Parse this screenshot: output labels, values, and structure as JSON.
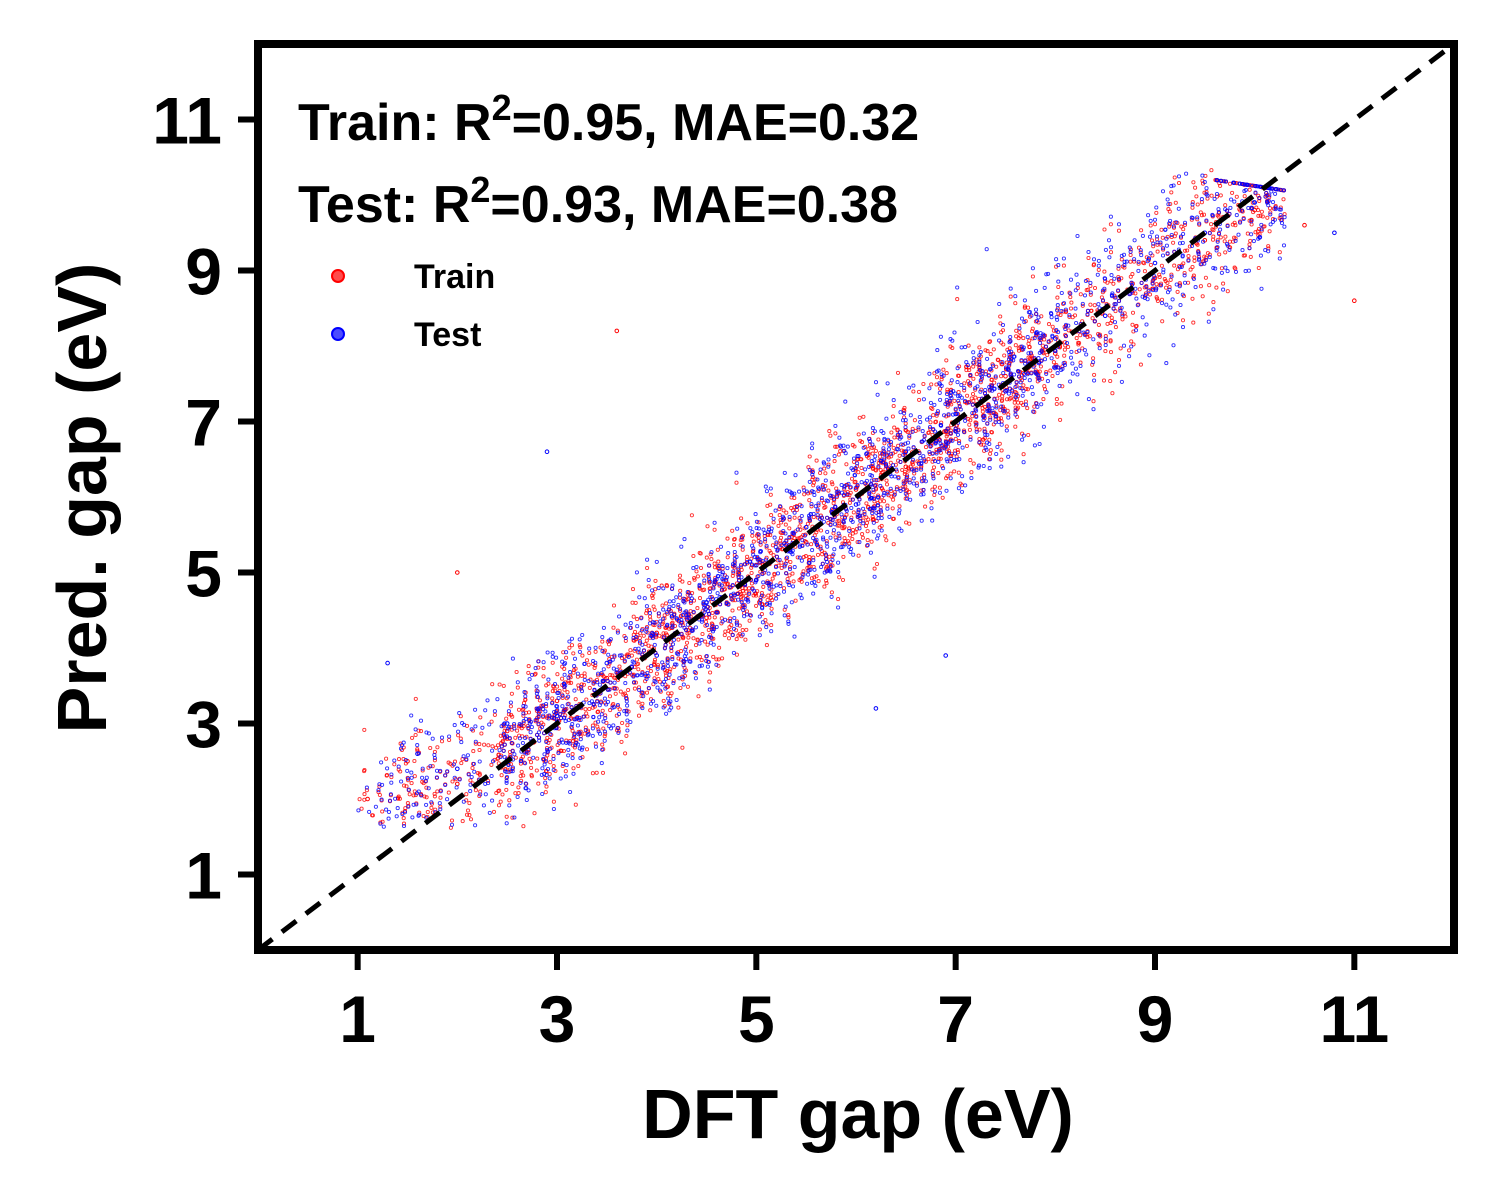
{
  "chart_data": {
    "type": "scatter",
    "xlabel": "DFT gap (eV)",
    "ylabel": "Pred. gap (eV)",
    "xlim": [
      0,
      12
    ],
    "ylim": [
      0,
      12
    ],
    "xticks": [
      1,
      3,
      5,
      7,
      9,
      11
    ],
    "yticks": [
      1,
      3,
      5,
      7,
      9,
      11
    ],
    "grid": false,
    "legend_position": "upper-left",
    "reference_line": {
      "style": "dashed",
      "color": "#000000",
      "from": [
        0,
        0
      ],
      "to": [
        12,
        12
      ]
    },
    "annotations": [
      {
        "prefix": "Train: R",
        "sup": "2",
        "suffix": "=0.95, MAE=0.32"
      },
      {
        "prefix": "Test: R",
        "sup": "2",
        "suffix": "=0.93, MAE=0.38"
      }
    ],
    "series": [
      {
        "name": "Train",
        "color": "#ff0000",
        "marker": "hollow-circle",
        "x_range": [
          1.0,
          11.0
        ],
        "density": "high",
        "r2": 0.95,
        "mae": 0.32,
        "sample_points": [
          {
            "x": 1.1,
            "y": 2.0
          },
          {
            "x": 1.5,
            "y": 2.5
          },
          {
            "x": 2.0,
            "y": 2.2
          },
          {
            "x": 2.5,
            "y": 2.9
          },
          {
            "x": 3.0,
            "y": 3.3
          },
          {
            "x": 3.5,
            "y": 3.6
          },
          {
            "x": 4.0,
            "y": 4.2
          },
          {
            "x": 4.5,
            "y": 4.4
          },
          {
            "x": 5.0,
            "y": 5.1
          },
          {
            "x": 5.5,
            "y": 5.4
          },
          {
            "x": 6.0,
            "y": 6.1
          },
          {
            "x": 6.5,
            "y": 6.4
          },
          {
            "x": 7.0,
            "y": 6.9
          },
          {
            "x": 7.5,
            "y": 7.6
          },
          {
            "x": 8.0,
            "y": 7.9
          },
          {
            "x": 8.5,
            "y": 8.5
          },
          {
            "x": 9.0,
            "y": 8.9
          },
          {
            "x": 9.5,
            "y": 9.4
          },
          {
            "x": 10.0,
            "y": 9.8
          },
          {
            "x": 10.5,
            "y": 9.6
          },
          {
            "x": 11.0,
            "y": 8.6
          },
          {
            "x": 3.6,
            "y": 8.2
          },
          {
            "x": 2.0,
            "y": 5.0
          }
        ]
      },
      {
        "name": "Test",
        "color": "#0000ff",
        "marker": "hollow-circle",
        "x_range": [
          1.0,
          10.8
        ],
        "density": "high",
        "r2": 0.93,
        "mae": 0.38,
        "sample_points": [
          {
            "x": 1.3,
            "y": 3.8
          },
          {
            "x": 1.6,
            "y": 2.6
          },
          {
            "x": 2.0,
            "y": 2.4
          },
          {
            "x": 2.5,
            "y": 3.0
          },
          {
            "x": 3.0,
            "y": 3.1
          },
          {
            "x": 3.5,
            "y": 3.8
          },
          {
            "x": 4.0,
            "y": 3.9
          },
          {
            "x": 4.5,
            "y": 4.6
          },
          {
            "x": 5.0,
            "y": 4.9
          },
          {
            "x": 5.5,
            "y": 5.6
          },
          {
            "x": 6.0,
            "y": 5.9
          },
          {
            "x": 6.5,
            "y": 6.6
          },
          {
            "x": 7.0,
            "y": 7.1
          },
          {
            "x": 7.5,
            "y": 7.4
          },
          {
            "x": 8.0,
            "y": 8.1
          },
          {
            "x": 8.5,
            "y": 8.4
          },
          {
            "x": 9.0,
            "y": 9.1
          },
          {
            "x": 9.5,
            "y": 9.5
          },
          {
            "x": 10.0,
            "y": 9.9
          },
          {
            "x": 10.8,
            "y": 9.5
          },
          {
            "x": 6.2,
            "y": 3.2
          },
          {
            "x": 2.9,
            "y": 6.6
          },
          {
            "x": 6.9,
            "y": 3.9
          }
        ]
      }
    ]
  }
}
